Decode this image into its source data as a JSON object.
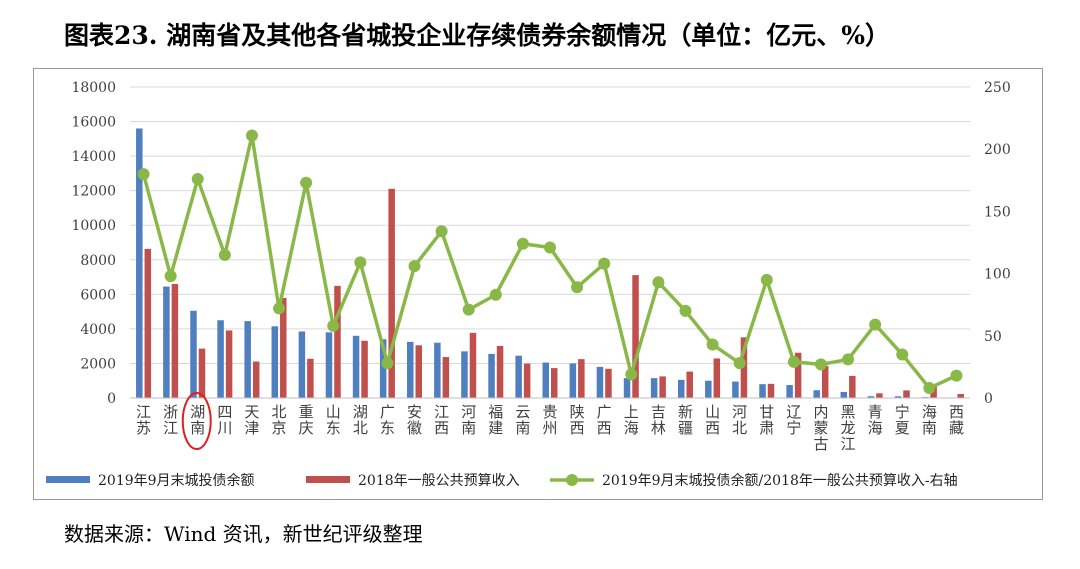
{
  "title": "图表23.   湖南省及其他各省城投企业存续债券余额情况（单位：亿元、%）",
  "source": "数据来源：Wind 资讯，新世纪评级整理",
  "colors": {
    "bar_primary": "#4f7fbf",
    "bar_secondary": "#c0504d",
    "line": "#8ab848",
    "gridline": "#d9d9d9",
    "highlight_circle": "#e02020",
    "axis_text": "#404040"
  },
  "chart_data": {
    "type": "bar",
    "title": "图表23.   湖南省及其他各省城投企业存续债券余额情况（单位：亿元、%）",
    "xlabel": "",
    "ylabel": "",
    "ylim": [
      0,
      18000
    ],
    "y2lim": [
      0,
      250
    ],
    "yticks": [
      "0",
      "2000",
      "4000",
      "6000",
      "8000",
      "10000",
      "12000",
      "14000",
      "16000",
      "18000"
    ],
    "y2ticks": [
      "0",
      "50",
      "100",
      "150",
      "200",
      "250"
    ],
    "grid": true,
    "legend_position": "bottom",
    "highlight_category": "湖南",
    "categories": [
      "江苏",
      "浙江",
      "湖南",
      "四川",
      "天津",
      "北京",
      "重庆",
      "山东",
      "湖北",
      "广东",
      "安徽",
      "江西",
      "河南",
      "福建",
      "云南",
      "贵州",
      "陕西",
      "广西",
      "上海",
      "吉林",
      "新疆",
      "山西",
      "河北",
      "甘肃",
      "辽宁",
      "内蒙古",
      "黑龙江",
      "青海",
      "宁夏",
      "海南",
      "西藏"
    ],
    "series": [
      {
        "name": "2019年9月末城投债余额",
        "type": "bar",
        "axis": "left",
        "color": "#4f7fbf",
        "values": [
          15600,
          6450,
          5050,
          4500,
          4450,
          4150,
          3850,
          3800,
          3600,
          3400,
          3250,
          3200,
          2700,
          2550,
          2450,
          2050,
          2000,
          1800,
          1150,
          1150,
          1050,
          1000,
          950,
          800,
          750,
          450,
          350,
          100,
          100,
          50,
          0
        ]
      },
      {
        "name": "2018年一般公共预算收入",
        "type": "bar",
        "axis": "left",
        "color": "#c0504d",
        "values": [
          8630,
          6600,
          2860,
          3910,
          2110,
          5790,
          2270,
          6490,
          3310,
          12110,
          3050,
          2370,
          3770,
          3010,
          1990,
          1730,
          2250,
          1690,
          7110,
          1250,
          1530,
          2290,
          3510,
          820,
          2620,
          1860,
          1280,
          270,
          440,
          750,
          230
        ]
      },
      {
        "name": "2019年9月末城投债余额/2018年一般公共预算收入-右轴",
        "type": "line",
        "axis": "right",
        "color": "#8ab848",
        "values": [
          180,
          98,
          176,
          115,
          211,
          72,
          173,
          58,
          109,
          28,
          106,
          134,
          71,
          83,
          124,
          121,
          89,
          108,
          19,
          93,
          70,
          43,
          28,
          95,
          29,
          27,
          31,
          59,
          35,
          8,
          18
        ]
      }
    ]
  }
}
